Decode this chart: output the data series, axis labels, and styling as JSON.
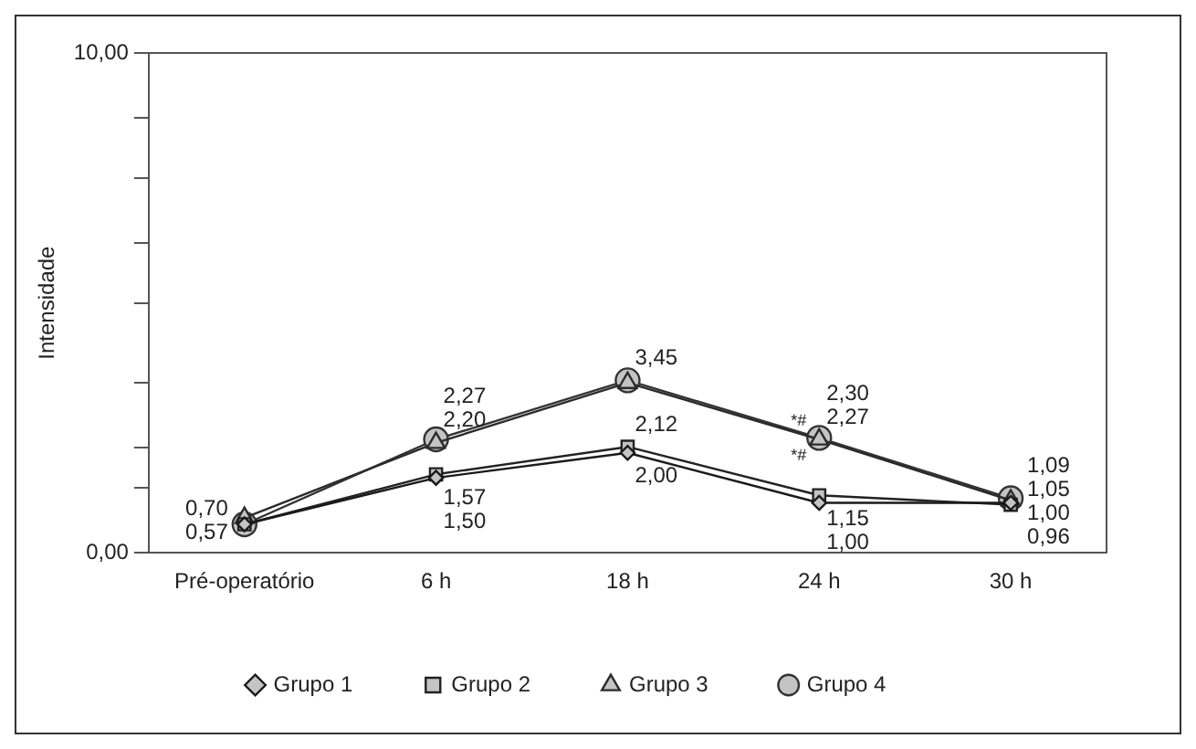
{
  "chart_data": {
    "type": "line",
    "ylabel": "Intensidade",
    "categories": [
      "Pré-operatório",
      "6 h",
      "18 h",
      "24 h",
      "30 h"
    ],
    "series": [
      {
        "name": "Grupo 1",
        "color": "#1a1a1a",
        "marker": "diamond",
        "values": [
          0.57,
          1.5,
          2.0,
          1.0,
          1.0
        ],
        "value_labels": [
          "0,57",
          "1,50",
          "2,00",
          "1,00",
          "1,00"
        ]
      },
      {
        "name": "Grupo 2",
        "color": "#222222",
        "marker": "square",
        "values": [
          0.57,
          1.57,
          2.12,
          1.15,
          0.96
        ],
        "value_labels": [
          null,
          "1,57",
          "2,12",
          "1,15",
          "0,96"
        ]
      },
      {
        "name": "Grupo 3",
        "color": "#2b2b2b",
        "marker": "triangle",
        "values": [
          0.7,
          2.2,
          3.4,
          2.27,
          1.05
        ],
        "value_labels": [
          "0,70",
          "2,20",
          null,
          "2,27",
          "1,05"
        ]
      },
      {
        "name": "Grupo 4",
        "color": "#333333",
        "marker": "circle",
        "values": [
          0.57,
          2.27,
          3.45,
          2.3,
          1.09
        ],
        "value_labels": [
          null,
          "2,27",
          "3,45",
          "2,30",
          "1,09"
        ]
      }
    ],
    "ylim": [
      0,
      10
    ],
    "yticks": [
      {
        "value": 0,
        "label": "0,00"
      },
      {
        "value": 1.3,
        "label": null
      },
      {
        "value": 2.1,
        "label": null
      },
      {
        "value": 3.4,
        "label": null
      },
      {
        "value": 5,
        "label": null
      },
      {
        "value": 6.2,
        "label": null
      },
      {
        "value": 7.5,
        "label": null
      },
      {
        "value": 8.7,
        "label": null
      },
      {
        "value": 10,
        "label": "10,00"
      }
    ],
    "annotations": [
      {
        "text": "*#",
        "x": "24 h",
        "y": 2.3
      },
      {
        "text": "*#",
        "x": "24 h",
        "y": 2.27
      }
    ],
    "grid": false,
    "legend": "bottom",
    "line_style": "solid"
  }
}
